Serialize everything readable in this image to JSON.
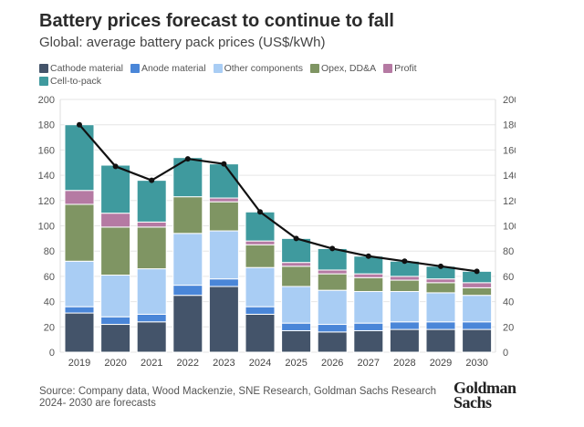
{
  "header": {
    "title": "Battery prices forecast to continue to fall",
    "subtitle": "Global: average battery pack prices (US$/kWh)"
  },
  "footer": {
    "source": "Source: Company data, Wood Mackenzie, SNE Research, Goldman Sachs Research",
    "note": "2024- 2030 are forecasts",
    "logo_text": [
      "Goldman",
      "Sachs"
    ]
  },
  "chart_data": {
    "type": "bar",
    "stacked": true,
    "categories": [
      "2019",
      "2020",
      "2021",
      "2022",
      "2023",
      "2024",
      "2025",
      "2026",
      "2027",
      "2028",
      "2029",
      "2030"
    ],
    "series": [
      {
        "name": "Cathode material",
        "color": "#44546a",
        "values": [
          31,
          22,
          24,
          45,
          52,
          30,
          17,
          16,
          17,
          18,
          18,
          18
        ]
      },
      {
        "name": "Anode material",
        "color": "#4a86d8",
        "values": [
          5,
          6,
          6,
          8,
          6,
          6,
          6,
          6,
          6,
          6,
          6,
          6
        ]
      },
      {
        "name": "Other components",
        "color": "#a9cdf4",
        "values": [
          36,
          33,
          36,
          41,
          38,
          31,
          29,
          27,
          25,
          24,
          23,
          21
        ]
      },
      {
        "name": "Opex, DD&A",
        "color": "#7f9563",
        "values": [
          45,
          38,
          33,
          29,
          23,
          18,
          16,
          13,
          11,
          9,
          8,
          6
        ]
      },
      {
        "name": "Profit",
        "color": "#b57aa3",
        "values": [
          11,
          11,
          4,
          0,
          3,
          3,
          3,
          3,
          3,
          3,
          3,
          4
        ]
      },
      {
        "name": "Cell-to-pack",
        "color": "#3f9a9e",
        "values": [
          52,
          38,
          33,
          31,
          27,
          23,
          19,
          17,
          14,
          12,
          10,
          9
        ]
      }
    ],
    "line": {
      "color": "#111111",
      "values": [
        180,
        147,
        136,
        153,
        149,
        111,
        90,
        82,
        76,
        72,
        68,
        64
      ]
    },
    "ylim": [
      0,
      200
    ],
    "yticks": [
      0,
      20,
      40,
      60,
      80,
      100,
      120,
      140,
      160,
      180,
      200
    ],
    "y2lim": [
      0,
      200
    ],
    "grid": true,
    "legend": "top-left"
  }
}
